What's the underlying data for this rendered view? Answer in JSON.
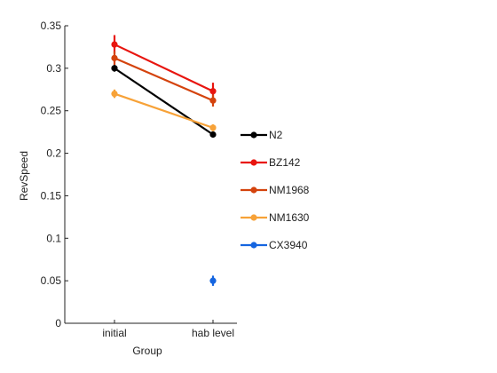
{
  "chart_data": {
    "type": "line",
    "title": "",
    "xlabel": "Group",
    "ylabel": "RevSpeed",
    "categories": [
      "initial",
      "hab level"
    ],
    "ylim": [
      0,
      0.35
    ],
    "yticks": [
      "0",
      "0.05",
      "0.1",
      "0.15",
      "0.2",
      "0.25",
      "0.3",
      "0.35"
    ],
    "grid": false,
    "legend_position": "right",
    "series": [
      {
        "name": "N2",
        "color": "#000000",
        "values": [
          0.3,
          0.222
        ],
        "errors": [
          0.004,
          0.003
        ]
      },
      {
        "name": "BZ142",
        "color": "#e8150f",
        "values": [
          0.328,
          0.273
        ],
        "errors": [
          0.011,
          0.01
        ]
      },
      {
        "name": "NM1968",
        "color": "#d4430d",
        "values": [
          0.312,
          0.262
        ],
        "errors": [
          0.008,
          0.007
        ]
      },
      {
        "name": "NM1630",
        "color": "#f7a238",
        "values": [
          0.27,
          0.23
        ],
        "errors": [
          0.005,
          0.004
        ]
      },
      {
        "name": "CX3940",
        "color": "#1565e0",
        "values": [
          null,
          0.05
        ],
        "errors": [
          null,
          0.006
        ]
      }
    ]
  }
}
